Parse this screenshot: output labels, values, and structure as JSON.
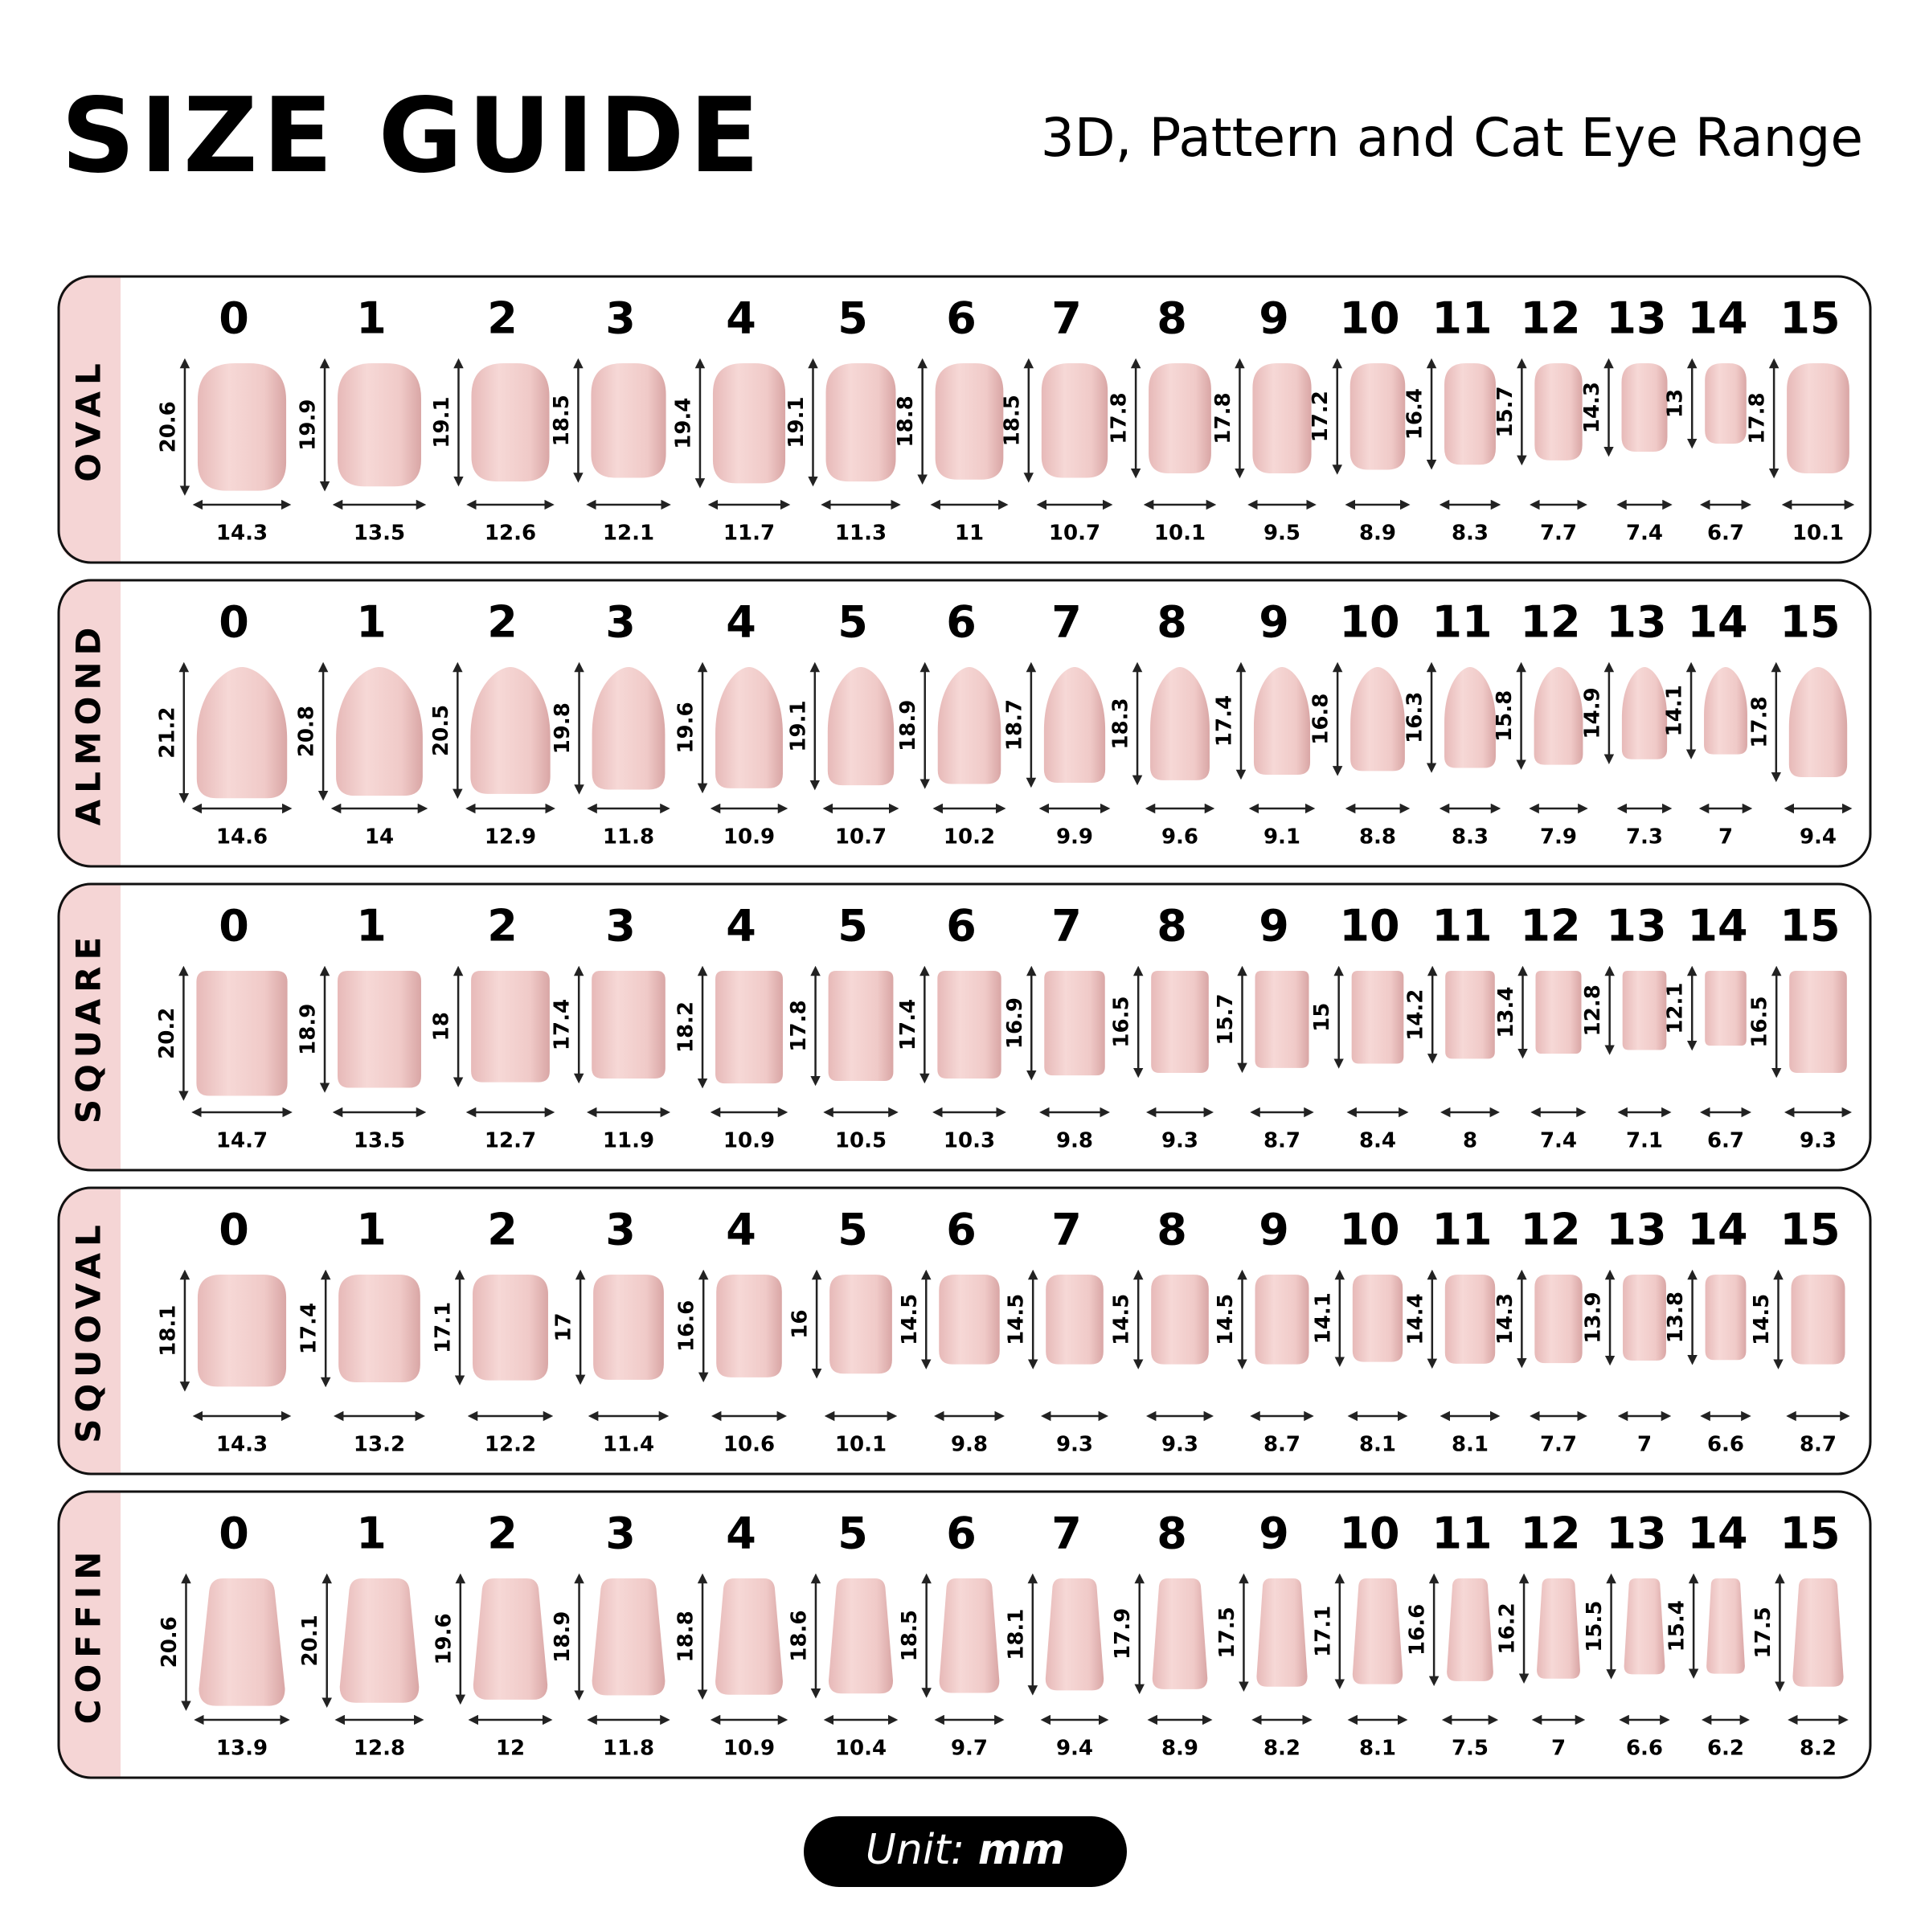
{
  "header": {
    "title": "SIZE GUIDE",
    "subtitle": "3D, Pattern and Cat Eye Range"
  },
  "sections": [
    {
      "shape": "OVAL",
      "sizes": [
        0,
        1,
        2,
        3,
        4,
        5,
        6,
        7,
        8,
        9,
        10,
        11,
        12,
        13,
        14,
        15
      ],
      "lengths": [
        20.6,
        19.9,
        19.1,
        18.5,
        19.4,
        19.1,
        18.8,
        18.5,
        17.8,
        17.8,
        17.2,
        16.4,
        15.7,
        14.3,
        13,
        17.8
      ],
      "widths": [
        14.3,
        13.5,
        12.6,
        12.1,
        11.7,
        11.3,
        11,
        10.7,
        10.1,
        9.5,
        8.9,
        8.3,
        7.7,
        7.4,
        6.7,
        10.1
      ]
    },
    {
      "shape": "ALMOND",
      "sizes": [
        0,
        1,
        2,
        3,
        4,
        5,
        6,
        7,
        8,
        9,
        10,
        11,
        12,
        13,
        14,
        15
      ],
      "lengths": [
        21.2,
        20.8,
        20.5,
        19.8,
        19.6,
        19.1,
        18.9,
        18.7,
        18.3,
        17.4,
        16.8,
        16.3,
        15.8,
        14.9,
        14.1,
        17.8
      ],
      "widths": [
        14.6,
        14,
        12.9,
        11.8,
        10.9,
        10.7,
        10.2,
        9.9,
        9.6,
        9.1,
        8.8,
        8.3,
        7.9,
        7.3,
        7,
        9.4
      ]
    },
    {
      "shape": "SQUARE",
      "sizes": [
        0,
        1,
        2,
        3,
        4,
        5,
        6,
        7,
        8,
        9,
        10,
        11,
        12,
        13,
        14,
        15
      ],
      "lengths": [
        20.2,
        18.9,
        18,
        17.4,
        18.2,
        17.8,
        17.4,
        16.9,
        16.5,
        15.7,
        15,
        14.2,
        13.4,
        12.8,
        12.1,
        16.5
      ],
      "widths": [
        14.7,
        13.5,
        12.7,
        11.9,
        10.9,
        10.5,
        10.3,
        9.8,
        9.3,
        8.7,
        8.4,
        8,
        7.4,
        7.1,
        6.7,
        9.3
      ]
    },
    {
      "shape": "SQUOVAL",
      "sizes": [
        0,
        1,
        2,
        3,
        4,
        5,
        6,
        7,
        8,
        9,
        10,
        11,
        12,
        13,
        14,
        15
      ],
      "lengths": [
        18.1,
        17.4,
        17.1,
        17,
        16.6,
        16,
        14.5,
        14.5,
        14.5,
        14.5,
        14.1,
        14.4,
        14.3,
        13.9,
        13.8,
        14.5
      ],
      "widths": [
        14.3,
        13.2,
        12.2,
        11.4,
        10.6,
        10.1,
        9.8,
        9.3,
        9.3,
        8.7,
        8.1,
        8.1,
        7.7,
        7,
        6.6,
        8.7
      ]
    },
    {
      "shape": "COFFIN",
      "sizes": [
        0,
        1,
        2,
        3,
        4,
        5,
        6,
        7,
        8,
        9,
        10,
        11,
        12,
        13,
        14,
        15
      ],
      "lengths": [
        20.6,
        20.1,
        19.6,
        18.9,
        18.8,
        18.6,
        18.5,
        18.1,
        17.9,
        17.5,
        17.1,
        16.6,
        16.2,
        15.5,
        15.4,
        17.5
      ],
      "widths": [
        13.9,
        12.8,
        12,
        11.8,
        10.9,
        10.4,
        9.7,
        9.4,
        8.9,
        8.2,
        8.1,
        7.5,
        7,
        6.6,
        6.2,
        8.2
      ]
    }
  ],
  "footer": {
    "label": "Unit:",
    "unit": "mm"
  }
}
